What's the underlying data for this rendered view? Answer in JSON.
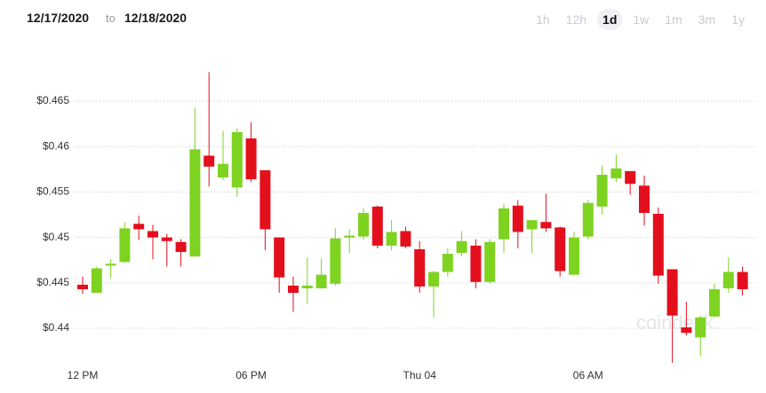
{
  "header": {
    "start_date": "12/17/2020",
    "separator": "to",
    "end_date": "12/18/2020",
    "ranges": [
      "1h",
      "12h",
      "1d",
      "1w",
      "1m",
      "3m",
      "1y"
    ],
    "selected_range": "1d"
  },
  "chart_data": {
    "type": "candlestick",
    "watermark": "coindesk",
    "categories": [
      "12 PM",
      null,
      null,
      null,
      null,
      null,
      null,
      null,
      null,
      null,
      null,
      null,
      "06 PM",
      null,
      null,
      null,
      null,
      null,
      null,
      null,
      null,
      null,
      null,
      null,
      "Thu 04",
      null,
      null,
      null,
      null,
      null,
      null,
      null,
      null,
      null,
      null,
      null,
      "06 AM",
      null,
      null,
      null,
      null,
      null,
      null,
      null,
      null,
      null,
      null,
      null
    ],
    "open": [
      0.4448,
      0.4439,
      0.4469,
      0.4473,
      0.4515,
      0.4507,
      0.45,
      0.4495,
      0.4479,
      0.459,
      0.4566,
      0.4555,
      0.4609,
      0.4574,
      0.45,
      0.4447,
      0.4444,
      0.4444,
      0.4449,
      0.45,
      0.4501,
      0.4534,
      0.4491,
      0.4507,
      0.4487,
      0.4446,
      0.4462,
      0.4483,
      0.4491,
      0.4451,
      0.4498,
      0.4535,
      0.4509,
      0.4517,
      0.4511,
      0.4459,
      0.4501,
      0.4534,
      0.4565,
      0.4573,
      0.4557,
      0.4526,
      0.4465,
      0.4401,
      0.439,
      0.4413,
      0.4444,
      0.4462
    ],
    "high": [
      0.4457,
      0.4468,
      0.4476,
      0.4517,
      0.4524,
      0.4514,
      0.4504,
      0.4498,
      0.4643,
      0.4682,
      0.4617,
      0.462,
      0.4627,
      0.4574,
      0.45,
      0.4457,
      0.4478,
      0.4477,
      0.451,
      0.4509,
      0.4532,
      0.4535,
      0.4519,
      0.4512,
      0.4496,
      0.4463,
      0.4488,
      0.4507,
      0.4498,
      0.4498,
      0.4537,
      0.4541,
      0.4519,
      0.4548,
      0.4512,
      0.4506,
      0.4541,
      0.4579,
      0.4591,
      0.4573,
      0.4568,
      0.4533,
      0.4465,
      0.4429,
      0.4414,
      0.4449,
      0.4478,
      0.4468
    ],
    "low": [
      0.4438,
      0.4439,
      0.4455,
      0.4472,
      0.4497,
      0.4476,
      0.4468,
      0.4468,
      0.4479,
      0.4556,
      0.4563,
      0.4545,
      0.4561,
      0.4486,
      0.4439,
      0.4418,
      0.4427,
      0.4444,
      0.4447,
      0.4483,
      0.4498,
      0.4488,
      0.4486,
      0.4488,
      0.4439,
      0.4412,
      0.4457,
      0.4479,
      0.4444,
      0.4449,
      0.4483,
      0.4488,
      0.4483,
      0.4506,
      0.4457,
      0.4459,
      0.4498,
      0.4525,
      0.4561,
      0.4547,
      0.4513,
      0.4449,
      0.4362,
      0.4392,
      0.4369,
      0.4412,
      0.4439,
      0.4436
    ],
    "close": [
      0.4443,
      0.4466,
      0.4471,
      0.451,
      0.4509,
      0.45,
      0.4496,
      0.4484,
      0.4597,
      0.4578,
      0.4581,
      0.4616,
      0.4564,
      0.4509,
      0.4456,
      0.4439,
      0.4447,
      0.4459,
      0.4499,
      0.4502,
      0.4527,
      0.4491,
      0.4506,
      0.449,
      0.4446,
      0.4462,
      0.4482,
      0.4496,
      0.4451,
      0.4495,
      0.4532,
      0.4506,
      0.4519,
      0.451,
      0.4463,
      0.45,
      0.4538,
      0.4569,
      0.4576,
      0.4559,
      0.4527,
      0.4458,
      0.4414,
      0.4395,
      0.4412,
      0.4443,
      0.4462,
      0.4443
    ],
    "up_color": "#7ed321",
    "down_color": "#e30f1c",
    "ylim": [
      0.4361,
      0.4693
    ],
    "yticks": [
      {
        "value": 0.44,
        "label": "$0.44"
      },
      {
        "value": 0.445,
        "label": "$0.445"
      },
      {
        "value": 0.45,
        "label": "$0.45"
      },
      {
        "value": 0.455,
        "label": "$0.455"
      },
      {
        "value": 0.46,
        "label": "$0.46"
      },
      {
        "value": 0.465,
        "label": "$0.465"
      }
    ],
    "grid": true
  }
}
